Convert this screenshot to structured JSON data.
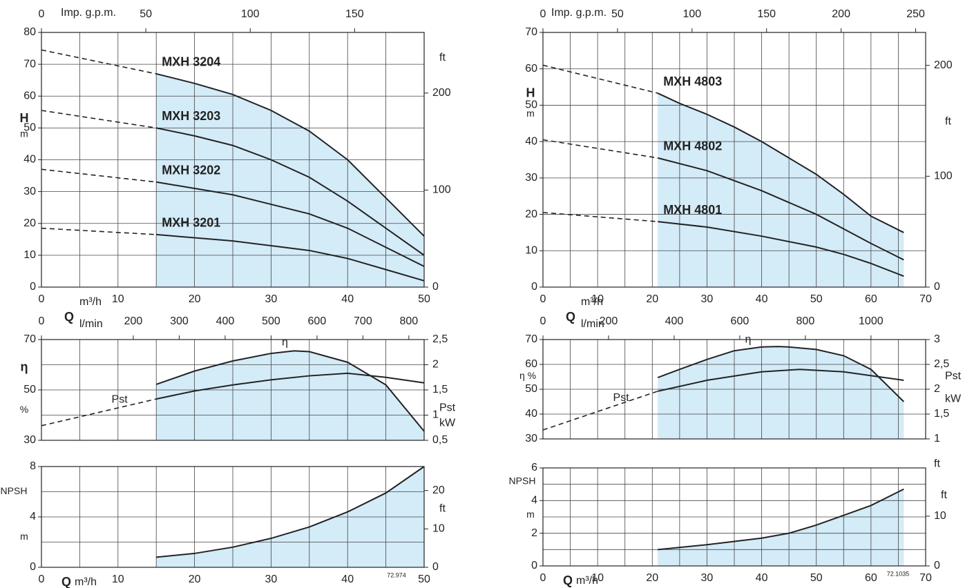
{
  "chart_data": [
    {
      "type": "line",
      "xlim": [
        0,
        50
      ],
      "xticks": [
        0,
        10,
        20,
        30,
        40,
        50
      ],
      "ylim": [
        0,
        80
      ],
      "yticks": [
        0,
        10,
        20,
        30,
        40,
        50,
        60,
        70,
        80
      ],
      "y2lim": [
        0,
        262.47
      ],
      "y2ticks": [
        0,
        100,
        200
      ],
      "x2lim": [
        0,
        183.3
      ],
      "x2ticks": [
        0,
        50,
        100,
        150
      ],
      "x2_label": "Imp. g.p.m.",
      "y_label": [
        "H",
        "m"
      ],
      "y2_label": [
        "ft"
      ],
      "x_label": "m³/h",
      "xminor": true,
      "yminor": false,
      "xtick_labels": true,
      "series": [
        {
          "name": "MXH 3204",
          "color": "#222222",
          "fill": "#d4ebf8",
          "x": [
            15,
            20,
            25,
            30,
            35,
            40,
            45,
            50
          ],
          "values": [
            67,
            64,
            60.5,
            55.5,
            49,
            40,
            28,
            16
          ],
          "dashed_x": [
            0,
            15
          ],
          "dashed_values": [
            74.5,
            67
          ]
        },
        {
          "name": "MXH 3203",
          "color": "#222222",
          "x": [
            15,
            20,
            25,
            30,
            35,
            40,
            45,
            50
          ],
          "values": [
            50,
            47.5,
            44.5,
            40,
            34.5,
            27,
            18.5,
            10
          ],
          "dashed_x": [
            0,
            15
          ],
          "dashed_values": [
            55.5,
            50
          ]
        },
        {
          "name": "MXH 3202",
          "color": "#222222",
          "x": [
            15,
            20,
            25,
            30,
            35,
            40,
            45,
            50
          ],
          "values": [
            33,
            31,
            29,
            26,
            23,
            18.5,
            12.5,
            6.5
          ],
          "dashed_x": [
            0,
            15
          ],
          "dashed_values": [
            37,
            33
          ]
        },
        {
          "name": "MXH 3201",
          "color": "#222222",
          "x": [
            15,
            20,
            25,
            30,
            35,
            40,
            45,
            50
          ],
          "values": [
            16.5,
            15.5,
            14.5,
            13,
            11.5,
            9,
            5.5,
            2
          ],
          "dashed_x": [
            0,
            15
          ],
          "dashed_values": [
            18.5,
            16.5
          ]
        }
      ]
    },
    {
      "type": "line",
      "xlim": [
        0,
        50
      ],
      "xticks": [
        0,
        10,
        20,
        30,
        40,
        50
      ],
      "ylim": [
        30,
        70
      ],
      "yticks": [
        30,
        50,
        70
      ],
      "y2lim": [
        0.5,
        2.5
      ],
      "y2ticks": [
        {
          "value": 0.5,
          "label": "0,5"
        },
        1,
        {
          "value": 1.5,
          "label": "1,5"
        },
        2,
        {
          "value": 2.5,
          "label": "2,5"
        }
      ],
      "x2lim": [
        0,
        833.3
      ],
      "x2ticks": [
        0,
        200,
        300,
        400,
        500,
        600,
        700,
        800
      ],
      "q_label": "Q",
      "x2_label": "l/min",
      "y_label": [
        "η",
        "%"
      ],
      "y2_label": [
        "Pst",
        "kW"
      ],
      "xminor": true,
      "yminor": true,
      "xtick_labels": false,
      "series": [
        {
          "name": "η",
          "color": "#222222",
          "fill": "#d4ebf8",
          "x": [
            15,
            20,
            25,
            30,
            33,
            35,
            40,
            45,
            50
          ],
          "values": [
            52.2,
            57.5,
            61.5,
            64.5,
            65.5,
            65.2,
            61,
            52,
            33.6
          ]
        },
        {
          "name": "Pst",
          "color": "#222222",
          "axis": "y2",
          "x": [
            15,
            20,
            25,
            30,
            35,
            40,
            45,
            50
          ],
          "values": [
            1.32,
            1.48,
            1.6,
            1.7,
            1.78,
            1.83,
            1.75,
            1.64
          ],
          "dashed_x": [
            0,
            15
          ],
          "dashed_values": [
            0.79,
            1.32
          ]
        }
      ]
    },
    {
      "type": "line",
      "xlim": [
        0,
        50
      ],
      "xticks": [
        0,
        10,
        20,
        30,
        40,
        50
      ],
      "ylim": [
        0,
        8
      ],
      "yticks": [
        0,
        4,
        8
      ],
      "y2lim": [
        0,
        26.25
      ],
      "y2ticks": [
        0,
        10,
        20
      ],
      "y_label": [
        "NPSH",
        "m"
      ],
      "y2_label": [
        "ft"
      ],
      "q_label": "Q",
      "x_label": "m³/h",
      "code": "72.974",
      "xminor": true,
      "yminor": true,
      "xtick_labels": true,
      "series": [
        {
          "color": "#222222",
          "fill": "#d4ebf8",
          "x": [
            15,
            20,
            25,
            30,
            35,
            40,
            45,
            50
          ],
          "values": [
            0.8,
            1.1,
            1.6,
            2.3,
            3.2,
            4.4,
            5.9,
            8
          ]
        }
      ]
    },
    {
      "type": "line",
      "xlim": [
        0,
        70
      ],
      "xticks": [
        0,
        10,
        20,
        30,
        40,
        50,
        60,
        70
      ],
      "ylim": [
        0,
        70
      ],
      "yticks": [
        0,
        10,
        20,
        30,
        40,
        50,
        60,
        70
      ],
      "y2lim": [
        0,
        229.7
      ],
      "y2ticks": [
        0,
        100,
        200
      ],
      "x2lim": [
        0,
        256.7
      ],
      "x2ticks": [
        0,
        50,
        100,
        150,
        200,
        250
      ],
      "x2_label": "Imp. g.p.m.",
      "y_label": [
        "H",
        "m"
      ],
      "y2_label": [
        "ft"
      ],
      "x_label": "m³/h",
      "xminor": true,
      "yminor": false,
      "xtick_labels": true,
      "series": [
        {
          "name": "MXH 4803",
          "color": "#222222",
          "fill": "#d4ebf8",
          "x": [
            21,
            25,
            30,
            35,
            40,
            45,
            50,
            55,
            60,
            66
          ],
          "values": [
            53.3,
            50.5,
            47.5,
            44,
            40,
            35.5,
            31,
            25.5,
            19.5,
            15
          ],
          "dashed_x": [
            0,
            21
          ],
          "dashed_values": [
            61,
            53.3
          ]
        },
        {
          "name": "MXH 4802",
          "color": "#222222",
          "x": [
            21,
            30,
            40,
            50,
            55,
            60,
            66
          ],
          "values": [
            35.5,
            32,
            26.5,
            20,
            16,
            12,
            7.5
          ],
          "dashed_x": [
            0,
            21
          ],
          "dashed_values": [
            40.5,
            35.5
          ]
        },
        {
          "name": "MXH 4801",
          "color": "#222222",
          "x": [
            21,
            30,
            40,
            50,
            55,
            60,
            66
          ],
          "values": [
            18,
            16.5,
            14,
            11,
            9,
            6.5,
            3
          ],
          "dashed_x": [
            0,
            21
          ],
          "dashed_values": [
            20.5,
            18
          ]
        }
      ]
    },
    {
      "type": "line",
      "xlim": [
        0,
        70
      ],
      "xticks": [
        0,
        10,
        20,
        30,
        40,
        50,
        60,
        70
      ],
      "ylim": [
        30,
        70
      ],
      "yticks": [
        30,
        40,
        50,
        60,
        70
      ],
      "y2lim": [
        1,
        3
      ],
      "y2ticks": [
        1,
        {
          "value": 1.5,
          "label": "1,5"
        },
        2,
        {
          "value": 2.5,
          "label": "2,5"
        },
        3
      ],
      "x2lim": [
        0,
        1166.7
      ],
      "x2ticks": [
        0,
        200,
        400,
        600,
        800,
        1000
      ],
      "q_label": "Q",
      "x2_label": "l/min",
      "y_label": [
        "η %"
      ],
      "y2_label": [
        "Pst",
        "kW"
      ],
      "xminor": true,
      "yminor": false,
      "xtick_labels": false,
      "series": [
        {
          "name": "η",
          "color": "#222222",
          "fill": "#d4ebf8",
          "x": [
            21,
            25,
            30,
            35,
            40,
            43,
            45,
            50,
            55,
            60,
            66
          ],
          "values": [
            54.7,
            58,
            62,
            65.5,
            67,
            67.2,
            67,
            66,
            63.5,
            58,
            45
          ]
        },
        {
          "name": "Pst",
          "color": "#222222",
          "axis": "y2",
          "x": [
            21,
            30,
            40,
            47,
            55,
            66
          ],
          "values": [
            1.96,
            2.18,
            2.35,
            2.4,
            2.35,
            2.18
          ],
          "dashed_x": [
            0,
            21
          ],
          "dashed_values": [
            1.18,
            1.96
          ]
        }
      ]
    },
    {
      "type": "line",
      "xlim": [
        0,
        70
      ],
      "xticks": [
        0,
        10,
        20,
        30,
        40,
        50,
        60,
        70
      ],
      "ylim": [
        0,
        6
      ],
      "yticks": [
        0,
        2,
        4,
        6
      ],
      "y2lim": [
        0,
        19.69
      ],
      "y2ticks": [
        0,
        10
      ],
      "y_label": [
        "NPSH",
        "m"
      ],
      "y2_label": [
        "ft",
        "ft"
      ],
      "q_label": "Q",
      "x_label": "m³/h",
      "code": "72.1035",
      "xminor": true,
      "yminor": true,
      "xtick_labels": true,
      "series": [
        {
          "color": "#222222",
          "fill": "#d4ebf8",
          "x": [
            21,
            30,
            40,
            45,
            50,
            55,
            60,
            66
          ],
          "values": [
            1,
            1.3,
            1.7,
            2,
            2.5,
            3.1,
            3.7,
            4.7
          ]
        }
      ]
    }
  ]
}
